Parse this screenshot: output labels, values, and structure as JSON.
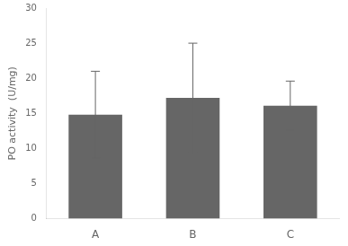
{
  "chart_data": {
    "type": "bar",
    "categories": [
      "A",
      "B",
      "C"
    ],
    "values": [
      14.8,
      17.2,
      16.1
    ],
    "errors": [
      6.2,
      7.8,
      3.5
    ],
    "color": "#666666",
    "ylabel": "PO activity  (U/mg)",
    "ylim": [
      0,
      30
    ],
    "yticks": [
      0,
      5,
      10,
      15,
      20,
      25,
      30
    ],
    "grid": false
  }
}
